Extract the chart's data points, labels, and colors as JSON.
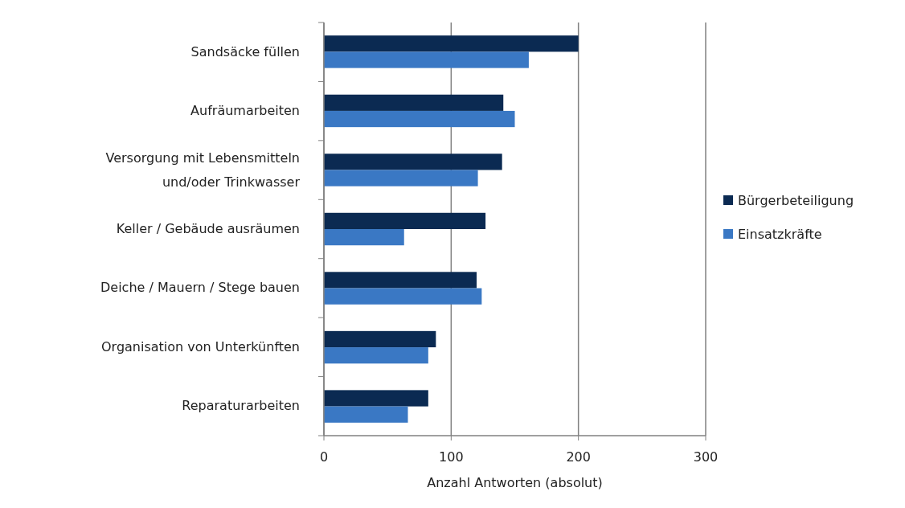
{
  "chart_data": {
    "type": "bar",
    "orientation": "horizontal",
    "xlabel": "Anzahl Antworten (absolut)",
    "categories": [
      "Sandsäcke füllen",
      "Aufräumarbeiten",
      "Versorgung mit Lebensmitteln und/oder Trinkwasser",
      "Keller / Gebäude ausräumen",
      "Deiche / Mauern / Stege bauen",
      "Organisation von Unterkünften",
      "Reparaturarbeiten"
    ],
    "series": [
      {
        "name": "Bürgerbeteiligung",
        "color": "#0b2a52",
        "values": [
          200,
          141,
          140,
          127,
          120,
          88,
          82
        ]
      },
      {
        "name": "Einsatzkräfte",
        "color": "#3a78c4",
        "values": [
          161,
          150,
          121,
          63,
          124,
          82,
          66
        ]
      }
    ],
    "xlim": [
      0,
      300
    ],
    "xticks": [
      0,
      100,
      200,
      300
    ],
    "grid": "x",
    "legend": "right"
  }
}
